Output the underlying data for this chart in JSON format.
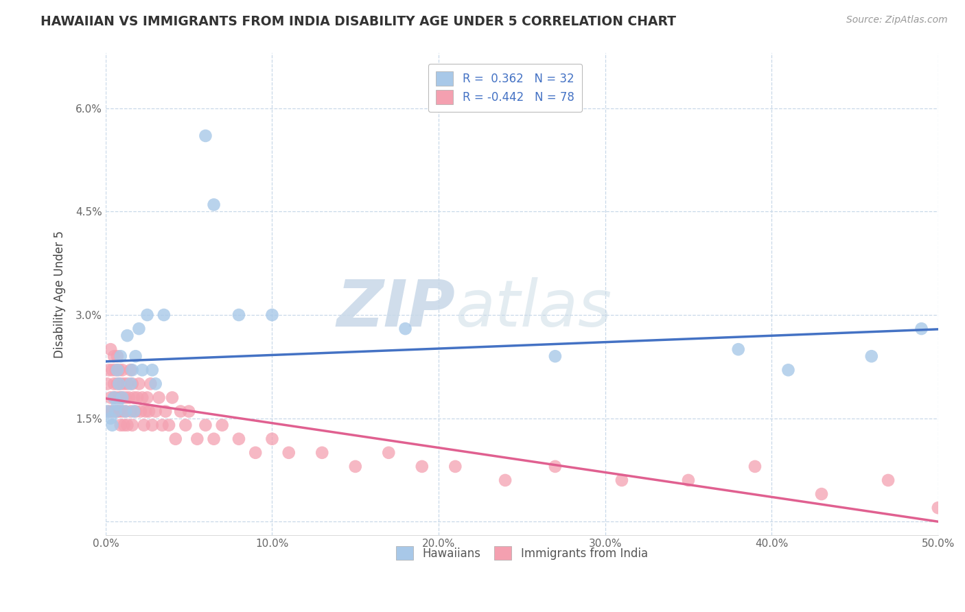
{
  "title": "HAWAIIAN VS IMMIGRANTS FROM INDIA DISABILITY AGE UNDER 5 CORRELATION CHART",
  "source": "Source: ZipAtlas.com",
  "ylabel": "Disability Age Under 5",
  "x_min": 0.0,
  "x_max": 0.5,
  "y_min": -0.002,
  "y_max": 0.068,
  "x_ticks": [
    0.0,
    0.1,
    0.2,
    0.3,
    0.4,
    0.5
  ],
  "x_tick_labels": [
    "0.0%",
    "10.0%",
    "20.0%",
    "30.0%",
    "40.0%",
    "50.0%"
  ],
  "y_ticks": [
    0.0,
    0.015,
    0.03,
    0.045,
    0.06
  ],
  "y_tick_labels": [
    "",
    "1.5%",
    "3.0%",
    "4.5%",
    "6.0%"
  ],
  "legend_label1": "Hawaiians",
  "legend_label2": "Immigrants from India",
  "color_hawaiian": "#a8c8e8",
  "color_india": "#f4a0b0",
  "color_line_hawaiian": "#4472c4",
  "color_line_india": "#e06090",
  "background_color": "#ffffff",
  "grid_color": "#c8d8e8",
  "hawaiian_x": [
    0.001,
    0.003,
    0.004,
    0.005,
    0.006,
    0.007,
    0.007,
    0.008,
    0.009,
    0.01,
    0.012,
    0.013,
    0.015,
    0.016,
    0.017,
    0.018,
    0.02,
    0.022,
    0.025,
    0.028,
    0.03,
    0.035,
    0.06,
    0.065,
    0.08,
    0.1,
    0.18,
    0.27,
    0.38,
    0.41,
    0.46,
    0.49
  ],
  "hawaiian_y": [
    0.016,
    0.015,
    0.014,
    0.018,
    0.016,
    0.022,
    0.017,
    0.02,
    0.024,
    0.018,
    0.016,
    0.027,
    0.02,
    0.022,
    0.016,
    0.024,
    0.028,
    0.022,
    0.03,
    0.022,
    0.02,
    0.03,
    0.056,
    0.046,
    0.03,
    0.03,
    0.028,
    0.024,
    0.025,
    0.022,
    0.024,
    0.028
  ],
  "india_x": [
    0.001,
    0.002,
    0.002,
    0.003,
    0.003,
    0.004,
    0.004,
    0.005,
    0.005,
    0.005,
    0.006,
    0.006,
    0.007,
    0.007,
    0.007,
    0.008,
    0.008,
    0.008,
    0.009,
    0.009,
    0.009,
    0.01,
    0.01,
    0.01,
    0.011,
    0.011,
    0.012,
    0.012,
    0.013,
    0.013,
    0.014,
    0.015,
    0.015,
    0.016,
    0.016,
    0.017,
    0.018,
    0.019,
    0.02,
    0.021,
    0.022,
    0.023,
    0.024,
    0.025,
    0.026,
    0.027,
    0.028,
    0.03,
    0.032,
    0.034,
    0.036,
    0.038,
    0.04,
    0.042,
    0.045,
    0.048,
    0.05,
    0.055,
    0.06,
    0.065,
    0.07,
    0.08,
    0.09,
    0.1,
    0.11,
    0.13,
    0.15,
    0.17,
    0.19,
    0.21,
    0.24,
    0.27,
    0.31,
    0.35,
    0.39,
    0.43,
    0.47,
    0.5
  ],
  "india_y": [
    0.02,
    0.022,
    0.016,
    0.025,
    0.018,
    0.022,
    0.016,
    0.02,
    0.018,
    0.024,
    0.018,
    0.022,
    0.02,
    0.016,
    0.024,
    0.018,
    0.022,
    0.016,
    0.02,
    0.018,
    0.014,
    0.022,
    0.018,
    0.016,
    0.02,
    0.014,
    0.018,
    0.016,
    0.02,
    0.014,
    0.018,
    0.022,
    0.016,
    0.02,
    0.014,
    0.018,
    0.016,
    0.018,
    0.02,
    0.016,
    0.018,
    0.014,
    0.016,
    0.018,
    0.016,
    0.02,
    0.014,
    0.016,
    0.018,
    0.014,
    0.016,
    0.014,
    0.018,
    0.012,
    0.016,
    0.014,
    0.016,
    0.012,
    0.014,
    0.012,
    0.014,
    0.012,
    0.01,
    0.012,
    0.01,
    0.01,
    0.008,
    0.01,
    0.008,
    0.008,
    0.006,
    0.008,
    0.006,
    0.006,
    0.008,
    0.004,
    0.006,
    0.002
  ]
}
